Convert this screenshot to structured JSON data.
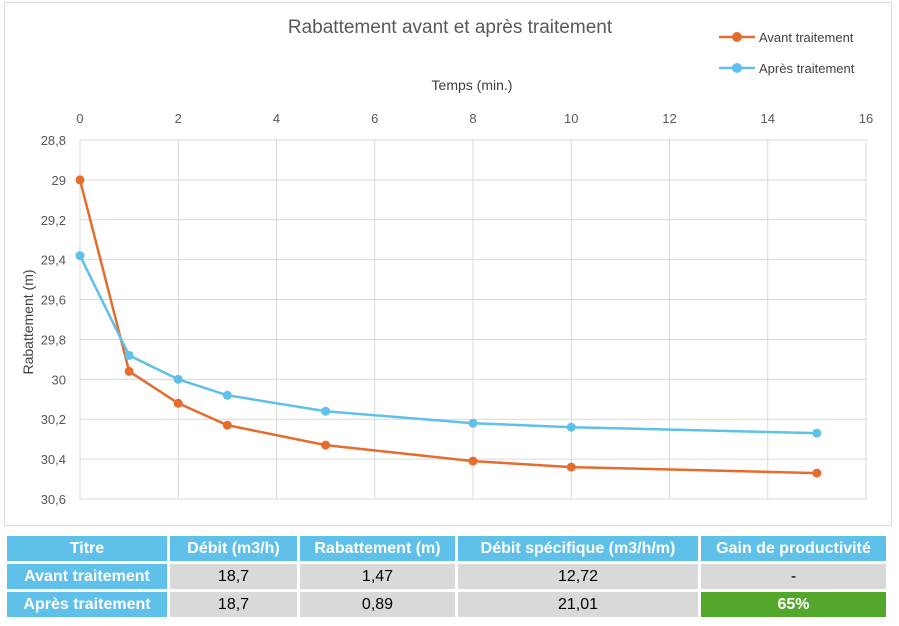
{
  "chart_data": {
    "type": "line",
    "title": "Rabattement avant et après traitement",
    "xlabel": "Temps (min.)",
    "ylabel": "Rabattement (m)",
    "xlim": [
      0,
      16
    ],
    "ylim": [
      28.8,
      30.6
    ],
    "y_reversed": true,
    "x_axis_position": "top",
    "x_ticks": [
      0,
      2,
      4,
      6,
      8,
      10,
      12,
      14,
      16
    ],
    "y_ticks": [
      28.8,
      29,
      29.2,
      29.4,
      29.6,
      29.8,
      30,
      30.2,
      30.4,
      30.6
    ],
    "x_tick_labels": [
      "0",
      "2",
      "4",
      "6",
      "8",
      "10",
      "12",
      "14",
      "16"
    ],
    "y_tick_labels": [
      "28,8",
      "29",
      "29,2",
      "29,4",
      "29,6",
      "29,8",
      "30",
      "30,2",
      "30,4",
      "30,6"
    ],
    "grid": true,
    "legend_position": "top-right",
    "series": [
      {
        "name": "Avant traitement",
        "color": "#e46c2d",
        "x": [
          0,
          1,
          2,
          3,
          5,
          8,
          10,
          15
        ],
        "y": [
          29.0,
          29.96,
          30.12,
          30.23,
          30.33,
          30.41,
          30.44,
          30.47
        ]
      },
      {
        "name": "Après traitement",
        "color": "#5fc0ea",
        "x": [
          0,
          1,
          2,
          3,
          5,
          8,
          10,
          15
        ],
        "y": [
          29.38,
          29.88,
          30.0,
          30.08,
          30.16,
          30.22,
          30.24,
          30.27
        ]
      }
    ]
  },
  "table": {
    "headers": [
      "Titre",
      "Débit (m3/h)",
      "Rabattement (m)",
      "Débit spécifique (m3/h/m)",
      "Gain de productivité"
    ],
    "rows": [
      [
        "Avant traitement",
        "18,7",
        "1,47",
        "12,72",
        "-"
      ],
      [
        "Après traitement",
        "18,7",
        "0,89",
        "21,01",
        "65%"
      ]
    ],
    "colors": {
      "header_bg": "#5fc0ea",
      "cell_bg": "#d9d9d9",
      "gain_bg": "#53a82b"
    }
  }
}
